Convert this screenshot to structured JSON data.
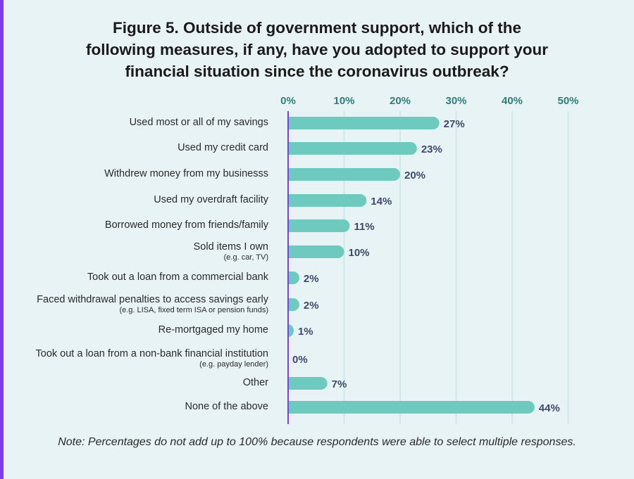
{
  "title_lines": [
    "Figure 5. Outside of government support, which of the",
    "following measures, if any, have you adopted to support your",
    "financial situation since the coronavirus outbreak?"
  ],
  "note": "Note: Percentages do not add up to 100% because respondents were able to select multiple responses.",
  "colors": {
    "bar": "#6ec9bf",
    "axis": "#7b3fe4",
    "tick": "#2e7d7a",
    "value": "#3d4a6b",
    "grid": "#c9e3e6",
    "accent": "#7b3fe4"
  },
  "chart_data": {
    "type": "bar",
    "orientation": "horizontal",
    "title": "Figure 5. Outside of government support, which of the following measures, if any, have you adopted to support your financial situation since the coronavirus outbreak?",
    "xlim": [
      0,
      50
    ],
    "ticks": [
      "0%",
      "10%",
      "20%",
      "30%",
      "40%",
      "50%"
    ],
    "tick_values": [
      0,
      10,
      20,
      30,
      40,
      50
    ],
    "unit": "%",
    "categories": [
      "Used most or all of my savings",
      "Used my credit card",
      "Withdrew money from my businesss",
      "Used my overdraft facility",
      "Borrowed money from friends/family",
      "Sold items I own",
      "Took out a loan from a commercial bank",
      "Faced withdrawal penalties to access savings early",
      "Re-mortgaged my home",
      "Took out a loan from a non-bank financial institution",
      "Other",
      "None of the above"
    ],
    "sublabels": [
      "",
      "",
      "",
      "",
      "",
      "(e.g. car, TV)",
      "",
      "(e.g. LISA, fixed term ISA or pension funds)",
      "",
      "(e.g. payday lender)",
      "",
      ""
    ],
    "values": [
      27,
      23,
      20,
      14,
      11,
      10,
      2,
      2,
      1,
      0,
      7,
      44
    ],
    "value_labels": [
      "27%",
      "23%",
      "20%",
      "14%",
      "11%",
      "10%",
      "2%",
      "2%",
      "1%",
      "0%",
      "7%",
      "44%"
    ]
  }
}
